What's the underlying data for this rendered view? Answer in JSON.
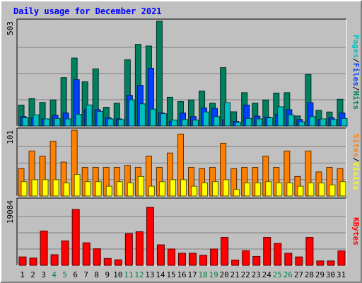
{
  "title": "Daily usage for December 2021",
  "colors": {
    "pages": "#00c0c0",
    "files": "#0040ff",
    "hits": "#008060",
    "sites": "#ff8000",
    "visits": "#ffff00",
    "kbytes": "#ff0000",
    "weekday_label": "#000000",
    "weekend_label": "#008040"
  },
  "legends": {
    "top": [
      {
        "label": "Pages",
        "color": "#00c0c0"
      },
      {
        "sep": "/",
        "color": "#000000"
      },
      {
        "label": "Files",
        "color": "#0040ff"
      },
      {
        "sep": "/",
        "color": "#000000"
      },
      {
        "label": "Hits",
        "color": "#008060"
      }
    ],
    "middle": [
      {
        "label": "Sites",
        "color": "#ff8000"
      },
      {
        "sep": "/",
        "color": "#000000"
      },
      {
        "label": "Visits",
        "color": "#ffff00"
      }
    ],
    "bottom": [
      {
        "label": "KBytes",
        "color": "#ff0000"
      }
    ]
  },
  "chart_data": [
    {
      "type": "bar",
      "name": "hits-files-pages",
      "max_label": "503",
      "ylim": [
        0,
        503
      ],
      "categories": [
        "1",
        "2",
        "3",
        "4",
        "5",
        "6",
        "7",
        "8",
        "9",
        "10",
        "11",
        "12",
        "13",
        "14",
        "15",
        "16",
        "17",
        "18",
        "19",
        "20",
        "21",
        "22",
        "23",
        "24",
        "25",
        "26",
        "27",
        "28",
        "29",
        "30",
        "31"
      ],
      "series": [
        {
          "name": "Hits",
          "values": [
            100,
            131,
            113,
            125,
            232,
            326,
            212,
            274,
            90,
            109,
            318,
            392,
            384,
            503,
            138,
            117,
            125,
            167,
            109,
            280,
            68,
            160,
            109,
            125,
            158,
            160,
            48,
            247,
            75,
            67,
            128
          ]
        },
        {
          "name": "Files",
          "values": [
            45,
            39,
            34,
            51,
            62,
            222,
            78,
            78,
            39,
            34,
            147,
            195,
            277,
            62,
            22,
            62,
            45,
            86,
            84,
            29,
            22,
            100,
            47,
            42,
            56,
            78,
            31,
            112,
            31,
            39,
            62
          ]
        },
        {
          "name": "Pages",
          "values": [
            39,
            53,
            34,
            36,
            34,
            56,
            101,
            70,
            34,
            31,
            125,
            106,
            81,
            59,
            28,
            31,
            28,
            67,
            45,
            112,
            17,
            36,
            34,
            39,
            92,
            53,
            20,
            45,
            34,
            31,
            36
          ]
        }
      ]
    },
    {
      "type": "bar",
      "name": "visits-sites",
      "max_label": "101",
      "ylim": [
        0,
        101
      ],
      "categories": [
        "1",
        "2",
        "3",
        "4",
        "5",
        "6",
        "7",
        "8",
        "9",
        "10",
        "11",
        "12",
        "13",
        "14",
        "15",
        "16",
        "17",
        "18",
        "19",
        "20",
        "21",
        "22",
        "23",
        "24",
        "25",
        "26",
        "27",
        "28",
        "29",
        "30",
        "31"
      ],
      "series": [
        {
          "name": "Sites",
          "values": [
            42,
            69,
            61,
            84,
            52,
            101,
            44,
            44,
            44,
            44,
            47,
            44,
            61,
            44,
            66,
            95,
            44,
            42,
            44,
            81,
            42,
            44,
            44,
            61,
            44,
            69,
            30,
            69,
            37,
            44,
            42
          ]
        },
        {
          "name": "Visits",
          "values": [
            22,
            25,
            25,
            25,
            20,
            33,
            22,
            22,
            15,
            22,
            20,
            30,
            15,
            22,
            25,
            25,
            15,
            20,
            22,
            25,
            10,
            20,
            20,
            22,
            20,
            20,
            15,
            20,
            20,
            17,
            22
          ]
        }
      ]
    },
    {
      "type": "bar",
      "name": "kbytes",
      "max_label": "19084",
      "ylim": [
        0,
        19084
      ],
      "categories": [
        "1",
        "2",
        "3",
        "4",
        "5",
        "6",
        "7",
        "8",
        "9",
        "10",
        "11",
        "12",
        "13",
        "14",
        "15",
        "16",
        "17",
        "18",
        "19",
        "20",
        "21",
        "22",
        "23",
        "24",
        "25",
        "26",
        "27",
        "28",
        "29",
        "30",
        "31"
      ],
      "series": [
        {
          "name": "KBytes",
          "values": [
            2460,
            2130,
            10060,
            3110,
            7150,
            16380,
            6600,
            4850,
            2010,
            1610,
            9280,
            9840,
            17000,
            6000,
            4780,
            3550,
            3550,
            2940,
            4780,
            8180,
            1550,
            4280,
            2610,
            8180,
            6430,
            3550,
            2460,
            8180,
            1280,
            1280,
            4230
          ]
        }
      ]
    }
  ]
}
